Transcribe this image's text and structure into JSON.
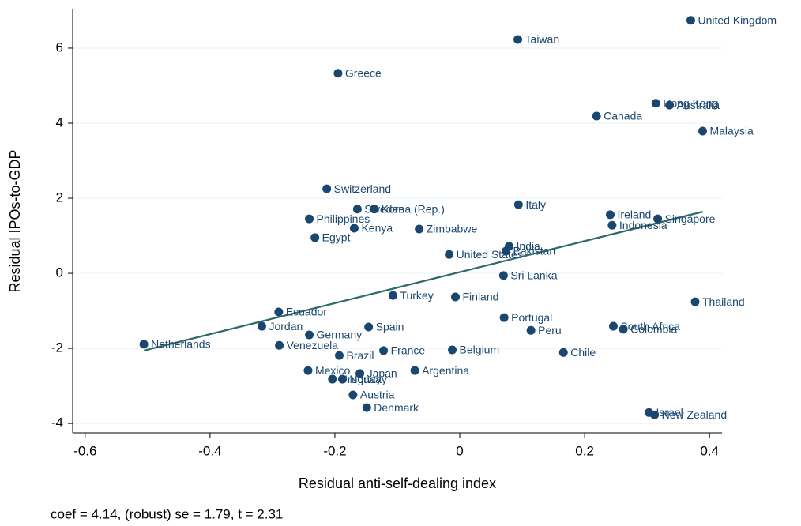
{
  "chart_data": {
    "type": "scatter",
    "xlabel": "Residual anti-self-dealing index",
    "ylabel": "Residual IPOs-to-GDP",
    "note": "coef = 4.14, (robust) se = 1.79, t = 2.31",
    "xlim": [
      -0.62,
      0.42
    ],
    "ylim": [
      -4.25,
      7.03
    ],
    "xticks": [
      -0.6,
      -0.4,
      -0.2,
      0,
      0.2,
      0.4
    ],
    "yticks": [
      -4,
      -2,
      0,
      2,
      4,
      6
    ],
    "grid": true,
    "points": {
      "color": "#1a476f",
      "labels": [
        "United Kingdom",
        "Taiwan",
        "Greece",
        "Hong Kong",
        "Australia",
        "Canada",
        "Malaysia",
        "Switzerland",
        "Sweden",
        "Korea (Rep.)",
        "Philippines",
        "Kenya",
        "Egypt",
        "Zimbabwe",
        "Italy",
        "Ireland",
        "Singapore",
        "Indonesia",
        "India",
        "Pakistan",
        "United States",
        "Sri Lanka",
        "Turkey",
        "Finland",
        "Ecuador",
        "Thailand",
        "Portugal",
        "Jordan",
        "Spain",
        "Germany",
        "Peru",
        "South Africa",
        "Colombia",
        "Netherlands",
        "Venezuela",
        "France",
        "Belgium",
        "Chile",
        "Brazil",
        "Mexico",
        "Argentina",
        "Japan",
        "Uruguay",
        "Norway",
        "Austria",
        "Denmark",
        "Israel",
        "New Zealand"
      ],
      "x": [
        0.37,
        0.093,
        -0.195,
        0.314,
        0.336,
        0.219,
        0.389,
        -0.213,
        -0.164,
        -0.137,
        -0.241,
        -0.169,
        -0.232,
        -0.065,
        0.094,
        0.241,
        0.317,
        0.244,
        0.079,
        0.074,
        -0.017,
        0.07,
        -0.107,
        -0.007,
        -0.29,
        0.377,
        0.071,
        -0.317,
        -0.146,
        -0.241,
        0.114,
        0.246,
        0.262,
        -0.506,
        -0.289,
        -0.122,
        -0.012,
        0.166,
        -0.193,
        -0.243,
        -0.072,
        -0.16,
        -0.204,
        -0.188,
        -0.171,
        -0.149,
        0.303,
        0.312
      ],
      "y": [
        6.74,
        6.23,
        5.33,
        4.53,
        4.48,
        4.19,
        3.79,
        2.25,
        1.71,
        1.71,
        1.45,
        1.2,
        0.95,
        1.18,
        1.83,
        1.56,
        1.45,
        1.28,
        0.72,
        0.59,
        0.5,
        -0.06,
        -0.59,
        -0.63,
        -1.03,
        -0.76,
        -1.18,
        -1.41,
        -1.43,
        -1.64,
        -1.52,
        -1.41,
        -1.49,
        -1.89,
        -1.92,
        -2.06,
        -2.04,
        -2.11,
        -2.19,
        -2.59,
        -2.59,
        -2.67,
        -2.82,
        -2.82,
        -3.24,
        -3.58,
        -3.71,
        -3.77
      ]
    },
    "fit_line": {
      "color": "#2e6b6b",
      "x": [
        -0.506,
        0.389
      ],
      "y": [
        -2.06,
        1.64
      ]
    }
  }
}
